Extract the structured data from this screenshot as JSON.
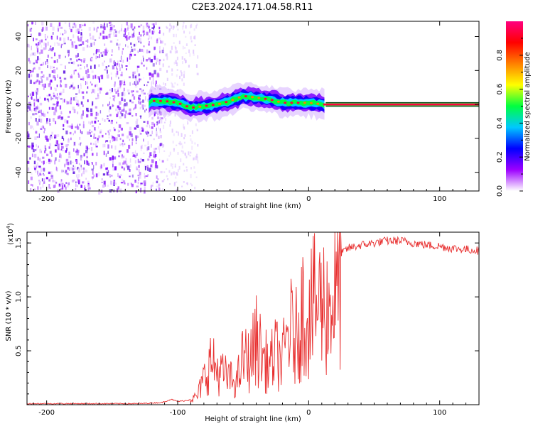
{
  "title": "C2E3.2024.171.04.58.R11",
  "chart_data": [
    {
      "type": "heatmap",
      "name": "spectrogram",
      "xlabel": "Height of straight line (km)",
      "ylabel": "Frequency (Hz)",
      "xlim": [
        -215,
        130
      ],
      "ylim": [
        -51,
        49
      ],
      "xticks": [
        -200,
        -100,
        0,
        100
      ],
      "xtick_labels": [
        "-200",
        "-100",
        "0",
        "100"
      ],
      "yticks": [
        -40,
        -20,
        0,
        20,
        40
      ],
      "ytick_labels": [
        "-40",
        "-20",
        "0",
        "20",
        "40"
      ],
      "noise_region_x": [
        -215,
        -112
      ],
      "signal_start_x": -122,
      "signal_end_x": 12,
      "line_start_x": 13,
      "centroid_track": [
        {
          "x": -120,
          "y": 2
        },
        {
          "x": -110,
          "y": 2
        },
        {
          "x": -100,
          "y": 1
        },
        {
          "x": -90,
          "y": -2
        },
        {
          "x": -80,
          "y": -1
        },
        {
          "x": -70,
          "y": 0
        },
        {
          "x": -60,
          "y": 2
        },
        {
          "x": -50,
          "y": 5
        },
        {
          "x": -40,
          "y": 4
        },
        {
          "x": -30,
          "y": 3
        },
        {
          "x": -20,
          "y": 1
        },
        {
          "x": -10,
          "y": 1
        },
        {
          "x": 0,
          "y": 1
        },
        {
          "x": 12,
          "y": 0
        }
      ],
      "colorbar": {
        "label": "Normalized spectral amplitude",
        "range": [
          0,
          1
        ],
        "ticks": [
          0.0,
          0.2,
          0.4,
          0.6,
          0.8
        ],
        "tick_labels": [
          "0.0",
          "0.2",
          "0.4",
          "0.6",
          "0.8"
        ],
        "colors": [
          "#ffffff",
          "#9d00ff",
          "#0000ff",
          "#00c8ff",
          "#00ff40",
          "#ffff00",
          "#ff8000",
          "#ff0000",
          "#ff0080"
        ]
      }
    },
    {
      "type": "line",
      "name": "snr",
      "xlabel": "Height of straight line (km)",
      "ylabel": "SNR (10 * v/v)",
      "y_scale_label": "(x10",
      "y_scale_exponent": "4",
      "y_scale_close": ")",
      "xlim": [
        -215,
        130
      ],
      "ylim": [
        0,
        1.6
      ],
      "xticks": [
        -200,
        -100,
        0,
        100
      ],
      "xtick_labels": [
        "-200",
        "-100",
        "0",
        "100"
      ],
      "yticks": [
        0.5,
        1.0,
        1.5
      ],
      "ytick_labels": [
        "0.5",
        "1.0",
        "1.5"
      ],
      "color": "#e83030",
      "series": [
        {
          "x": -215,
          "y": 0.01
        },
        {
          "x": -190,
          "y": 0.01
        },
        {
          "x": -160,
          "y": 0.01
        },
        {
          "x": -130,
          "y": 0.01
        },
        {
          "x": -112,
          "y": 0.02
        },
        {
          "x": -105,
          "y": 0.05
        },
        {
          "x": -100,
          "y": 0.03
        },
        {
          "x": -92,
          "y": 0.04
        },
        {
          "x": -85,
          "y": 0.1
        },
        {
          "x": -80,
          "y": 0.3
        },
        {
          "x": -75,
          "y": 0.5
        },
        {
          "x": -70,
          "y": 0.4
        },
        {
          "x": -65,
          "y": 0.35
        },
        {
          "x": -60,
          "y": 0.3
        },
        {
          "x": -55,
          "y": 0.25
        },
        {
          "x": -50,
          "y": 0.55
        },
        {
          "x": -45,
          "y": 0.5
        },
        {
          "x": -40,
          "y": 0.75
        },
        {
          "x": -35,
          "y": 0.55
        },
        {
          "x": -30,
          "y": 0.45
        },
        {
          "x": -25,
          "y": 0.6
        },
        {
          "x": -20,
          "y": 0.5
        },
        {
          "x": -15,
          "y": 0.9
        },
        {
          "x": -10,
          "y": 0.75
        },
        {
          "x": -5,
          "y": 1.1
        },
        {
          "x": 0,
          "y": 1.05
        },
        {
          "x": 5,
          "y": 1.15
        },
        {
          "x": 10,
          "y": 1.2
        },
        {
          "x": 15,
          "y": 1.1
        },
        {
          "x": 20,
          "y": 1.3
        },
        {
          "x": 25,
          "y": 1.4
        },
        {
          "x": 30,
          "y": 1.45
        },
        {
          "x": 40,
          "y": 1.48
        },
        {
          "x": 50,
          "y": 1.5
        },
        {
          "x": 60,
          "y": 1.52
        },
        {
          "x": 70,
          "y": 1.52
        },
        {
          "x": 80,
          "y": 1.5
        },
        {
          "x": 90,
          "y": 1.48
        },
        {
          "x": 100,
          "y": 1.47
        },
        {
          "x": 110,
          "y": 1.45
        },
        {
          "x": 120,
          "y": 1.44
        },
        {
          "x": 130,
          "y": 1.43
        }
      ]
    }
  ]
}
